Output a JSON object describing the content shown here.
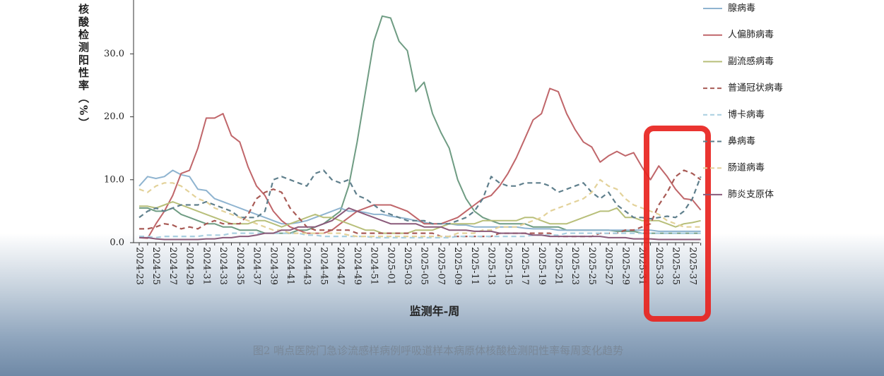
{
  "chart_data": {
    "type": "line",
    "caption": "图2 哨点医院门急诊流感样病例呼吸道样本病原体核酸检测阳性率每周变化趋势",
    "x_label": "监测年-周",
    "y_label": "核酸检测阳性率（%）",
    "categories": [
      "2024-23",
      null,
      "2024-25",
      null,
      "2024-27",
      null,
      "2024-29",
      null,
      "2024-31",
      null,
      "2024-33",
      null,
      "2024-35",
      null,
      "2024-37",
      null,
      "2024-39",
      null,
      "2024-41",
      null,
      "2024-43",
      null,
      "2024-45",
      null,
      "2024-47",
      null,
      "2024-49",
      null,
      "2024-51",
      null,
      "2025-01",
      null,
      "2025-03",
      null,
      "2025-05",
      null,
      "2025-07",
      null,
      "2025-09",
      null,
      "2025-11",
      null,
      "2025-13",
      null,
      "2025-15",
      null,
      "2025-17",
      null,
      "2025-19",
      null,
      "2025-21",
      null,
      "2025-23",
      null,
      "2025-25",
      null,
      "2025-27",
      null,
      "2025-29",
      null,
      "2025-31",
      null,
      "2025-33",
      null,
      "2025-35",
      null,
      "2025-37",
      null
    ],
    "ylim": [
      0,
      38
    ],
    "yticks": [
      {
        "value": 0,
        "label": "0.0"
      },
      {
        "value": 10,
        "label": "10.0"
      },
      {
        "value": 20,
        "label": "20.0"
      },
      {
        "value": 30,
        "label": "30.0"
      }
    ],
    "series": [
      {
        "color": "#6f9c83",
        "dash": false,
        "values": [
          5.5,
          5.5,
          5,
          5,
          5.5,
          4.5,
          4,
          3.5,
          3,
          3,
          2.5,
          2.5,
          2,
          2,
          2,
          1.5,
          1.5,
          1.5,
          1.5,
          2,
          2,
          2.5,
          3,
          4,
          5,
          9,
          16,
          24,
          32,
          36,
          35.7,
          32,
          30.5,
          24,
          25.5,
          20.5,
          17.5,
          15,
          10,
          7,
          5,
          4,
          3.5,
          3,
          3,
          3,
          3,
          2.5,
          2.5,
          2.5,
          2.5,
          2,
          2,
          2,
          2,
          2,
          2,
          1.8,
          1.8,
          1.8,
          1.5,
          1.5,
          1.5,
          1.5,
          1.5,
          1.5,
          1.5,
          1.5
        ]
      },
      {
        "name": "腺病毒",
        "color": "#8fb4d0",
        "dash": false,
        "values": [
          9,
          10.5,
          10.2,
          10.5,
          11.5,
          10.8,
          10.5,
          8.5,
          8.3,
          7,
          6.5,
          6,
          5.5,
          5,
          4.5,
          4,
          3.5,
          3,
          3,
          3.2,
          3.5,
          4,
          4.5,
          5,
          5.5,
          5,
          5,
          4.8,
          4.5,
          4.5,
          4.2,
          4,
          3.8,
          3.5,
          3.2,
          3,
          3,
          3,
          2.8,
          2.8,
          2.5,
          2.5,
          2.5,
          2.5,
          2.5,
          2.5,
          2.3,
          2.2,
          2.2,
          2.2,
          2,
          2,
          2,
          2,
          2,
          2,
          2,
          2,
          2,
          2,
          2,
          2,
          1.8,
          1.8,
          1.8,
          1.8,
          1.8,
          1.8
        ]
      },
      {
        "name": "人偏肺病毒",
        "color": "#c0666a",
        "dash": false,
        "values": [
          0.8,
          0.7,
          3,
          5,
          7.5,
          11,
          11.5,
          15,
          19.8,
          19.8,
          20.5,
          17,
          16,
          12,
          9,
          7.5,
          5,
          3.5,
          2.5,
          2,
          1.5,
          1.5,
          1.5,
          2,
          3,
          4,
          5,
          5.5,
          6,
          6,
          6,
          5.5,
          5,
          4,
          3,
          3,
          3,
          3.5,
          4,
          5,
          6,
          7,
          7.5,
          9,
          11,
          13.5,
          16.5,
          19.5,
          20.5,
          24.5,
          24,
          20.5,
          18,
          16,
          15.2,
          12.8,
          13.8,
          14.5,
          13.8,
          14.3,
          12,
          10,
          12.2,
          10.5,
          8.5,
          7,
          6.8,
          5.2
        ]
      },
      {
        "name": "副流感病毒",
        "color": "#b8bf7a",
        "dash": false,
        "values": [
          5.8,
          5.8,
          5.5,
          6,
          6.5,
          6,
          5.5,
          5,
          4.5,
          4,
          3.5,
          3,
          3,
          3,
          3.5,
          3.5,
          3,
          2.5,
          3,
          3.5,
          4,
          4.5,
          4,
          4,
          3.5,
          3,
          2.5,
          2,
          2,
          1.5,
          1.5,
          1.5,
          1.5,
          2,
          2,
          2,
          2.5,
          3,
          3,
          3,
          3,
          3.5,
          3.5,
          3.5,
          3.5,
          3.5,
          4,
          4,
          3.5,
          3,
          3,
          3,
          3.5,
          4,
          4.5,
          5,
          5,
          5.5,
          4,
          4,
          3.5,
          3.5,
          3.5,
          3,
          2.5,
          3,
          3.2,
          3.5
        ]
      },
      {
        "name": "普通冠状病毒",
        "color": "#a85a55",
        "dash": true,
        "values": [
          2.2,
          2.2,
          2.5,
          3,
          2.8,
          2.2,
          2.5,
          2.2,
          3,
          3.5,
          3,
          3,
          3,
          4.5,
          7,
          8,
          8.5,
          8,
          5.5,
          4,
          2.5,
          2,
          2,
          2,
          2,
          2,
          1.5,
          1.5,
          1.5,
          1.5,
          1.5,
          1.5,
          1.5,
          1.5,
          1.5,
          1.5,
          1,
          1,
          1,
          1,
          1,
          1,
          1,
          1.5,
          1.5,
          1.5,
          1.5,
          1.5,
          1.5,
          1.5,
          1,
          1,
          1,
          1,
          1,
          1.5,
          1.5,
          1.5,
          2,
          2,
          2.5,
          3,
          6,
          8,
          10.5,
          11.5,
          11,
          10
        ]
      },
      {
        "name": "博卡病毒",
        "color": "#a8cfe0",
        "dash": true,
        "values": [
          1,
          1,
          0.8,
          1,
          1,
          1,
          1,
          1,
          1.2,
          1.2,
          1.2,
          1.5,
          1.5,
          1.5,
          1.5,
          1.5,
          1.5,
          1.5,
          1.5,
          1.5,
          1.2,
          1.2,
          1,
          1,
          1,
          1,
          1,
          1,
          0.8,
          0.8,
          0.8,
          0.8,
          0.8,
          0.8,
          0.8,
          0.8,
          0.8,
          0.8,
          1,
          1,
          1,
          1,
          1,
          1,
          1,
          1,
          1,
          1.2,
          1.2,
          1.2,
          1.2,
          1.5,
          1.5,
          1.5,
          1.5,
          1.5,
          1.5,
          1.5,
          1.5,
          1.5,
          1.5,
          1.5,
          1.5,
          1.5,
          1.5,
          1.5,
          1.5,
          1.5
        ]
      },
      {
        "name": "鼻病毒",
        "color": "#5f7f8c",
        "dash": true,
        "values": [
          4,
          5,
          5.5,
          5,
          5.5,
          6,
          6,
          6,
          6.5,
          6,
          5.5,
          5,
          4,
          4,
          4,
          5,
          10,
          10.5,
          10,
          9.5,
          9,
          11,
          11.5,
          10,
          9.5,
          10,
          7.5,
          7,
          6,
          5,
          4.5,
          4,
          3.5,
          3.5,
          3.5,
          3,
          3,
          3,
          3.5,
          4,
          5,
          7,
          10.5,
          9.5,
          9,
          9,
          9.5,
          9.5,
          9.5,
          9,
          8,
          8.5,
          9,
          9.5,
          8,
          7,
          8,
          6,
          5,
          4,
          4,
          3.8,
          4,
          4.2,
          4,
          5,
          7,
          10.5
        ]
      },
      {
        "name": "肠道病毒",
        "color": "#e3d29a",
        "dash": true,
        "values": [
          8.5,
          8,
          9,
          9.5,
          9.5,
          9,
          8,
          7,
          6.5,
          5.5,
          5,
          4.5,
          4,
          3.5,
          3,
          2.5,
          2,
          2,
          1.5,
          1.5,
          1.5,
          1.5,
          1.5,
          1.5,
          1.5,
          1.2,
          1,
          1,
          1,
          1,
          1,
          1,
          1,
          1,
          1,
          1,
          1,
          1,
          1.5,
          1.5,
          1.5,
          2,
          2,
          2.5,
          2.5,
          2.5,
          3,
          3.5,
          4,
          5,
          5.5,
          6,
          6.5,
          7,
          8,
          10,
          9,
          8.5,
          7,
          6,
          5.5,
          5,
          4.5,
          3.5,
          3,
          2.5,
          2.5,
          2.5
        ]
      },
      {
        "name": "肺炎支原体",
        "color": "#8a5a7a",
        "dash": false,
        "values": [
          0.8,
          0.8,
          0.6,
          0.5,
          0.5,
          0.5,
          0.5,
          0.5,
          0.6,
          0.6,
          0.8,
          0.8,
          1,
          1,
          1.2,
          1.5,
          1.5,
          2,
          2,
          2.5,
          2.5,
          2.5,
          3,
          3.5,
          4.5,
          5.5,
          5,
          4.5,
          4,
          3.5,
          3,
          3,
          3,
          3,
          2.5,
          2.5,
          2.5,
          2,
          2,
          2,
          1.8,
          1.8,
          1.8,
          1.5,
          1.5,
          1.5,
          1.5,
          1.2,
          1.2,
          1,
          1,
          1,
          1,
          1,
          1,
          1,
          0.8,
          0.8,
          0.8,
          0.6,
          0.6,
          0.6,
          0.5,
          0.5,
          0.5,
          0.5,
          0.5,
          0.5
        ]
      }
    ]
  }
}
